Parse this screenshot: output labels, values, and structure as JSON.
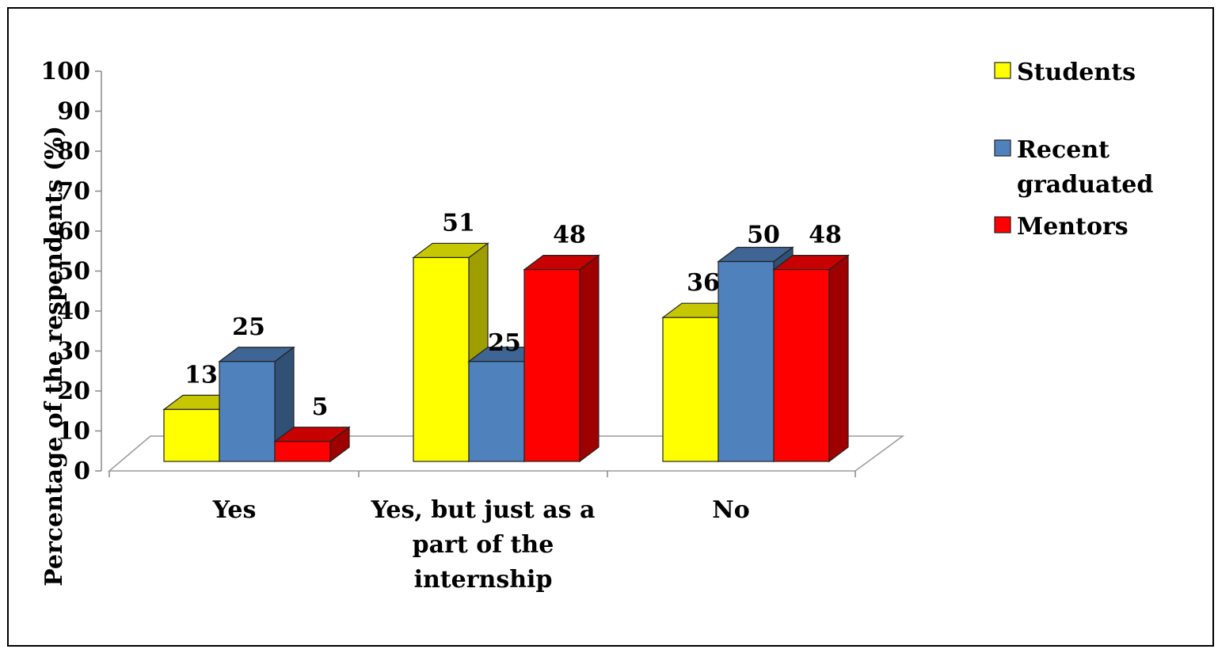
{
  "chart_data": {
    "type": "bar",
    "style": "3d-clustered-column",
    "title": "",
    "ylabel": "Percentage of the respendents (%)",
    "xlabel": "",
    "ylim": [
      0,
      100
    ],
    "yticks": [
      0,
      10,
      20,
      30,
      40,
      50,
      60,
      70,
      80,
      90,
      100
    ],
    "grid": false,
    "legend_position": "top-right",
    "categories": [
      [
        "Yes"
      ],
      [
        "Yes, but just as a",
        "part of the",
        "internship"
      ],
      [
        "No"
      ]
    ],
    "series": [
      {
        "name": "Students",
        "values": [
          13,
          51,
          36
        ],
        "color": "#FFFF00"
      },
      {
        "name": "Recent graduated",
        "legend_lines": [
          "Recent",
          "graduated"
        ],
        "values": [
          25,
          25,
          50
        ],
        "color": "#4F81BD"
      },
      {
        "name": "Mentors",
        "values": [
          5,
          48,
          48
        ],
        "color": "#FF0000"
      }
    ]
  }
}
